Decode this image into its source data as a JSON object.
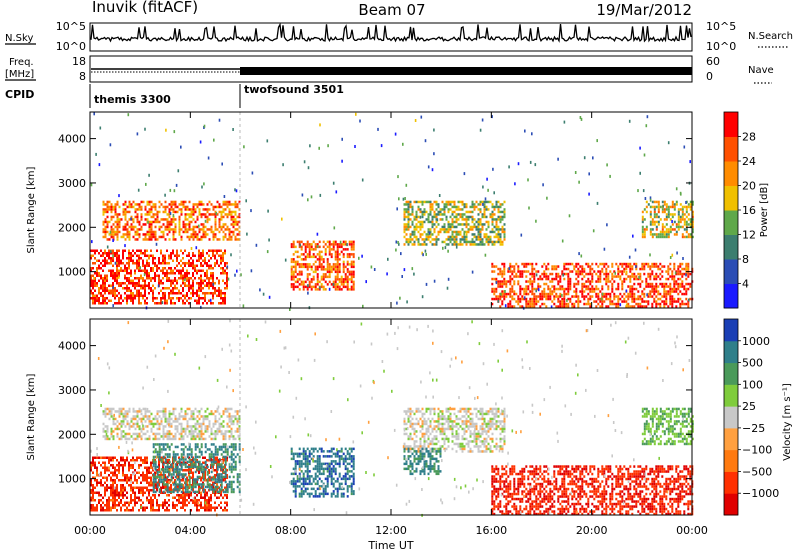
{
  "header": {
    "station": "Inuvik (fitACF)",
    "beam": "Beam 07",
    "date": "19/Mar/2012"
  },
  "sky_panel": {
    "left_label": "N.Sky",
    "right_label": "N.Search",
    "left_ticks": [
      "10^5",
      "10^0"
    ],
    "right_ticks": [
      "10^5",
      "10^0"
    ]
  },
  "freq_panel": {
    "left_label_1": "Freq.",
    "left_label_2": "[MHz]",
    "right_label": "Nave",
    "left_ticks": [
      "18",
      "8"
    ],
    "right_ticks": [
      "60",
      "0"
    ]
  },
  "cpid_panel": {
    "label": "CPID",
    "programs": [
      {
        "name": "themis 3300",
        "start_hour": 0
      },
      {
        "name": "twofsound 3501",
        "start_hour": 6
      }
    ]
  },
  "chart_data": [
    {
      "type": "heatmap",
      "quantity": "Power",
      "ylabel": "Slant Range [km]",
      "yticks": [
        1000,
        2000,
        3000,
        4000
      ],
      "ylim": [
        180,
        4600
      ],
      "xlim": [
        0,
        24
      ],
      "colorbar_label": "Power [dB]",
      "colorbar_ticks": [
        4,
        8,
        12,
        16,
        20,
        24,
        28
      ],
      "colorbar_colors": [
        "#1a1aff",
        "#2b4db5",
        "#3c7e6f",
        "#5fa84a",
        "#f0c000",
        "#ff8c00",
        "#ff5000",
        "#ff0000"
      ],
      "scatter_regions": [
        {
          "t0": 0.0,
          "t1": 5.5,
          "r0": 300,
          "r1": 1500,
          "level": 0.9
        },
        {
          "t0": 0.5,
          "t1": 6.0,
          "r0": 1700,
          "r1": 2600,
          "level": 0.75
        },
        {
          "t0": 8.0,
          "t1": 10.5,
          "r0": 600,
          "r1": 1700,
          "level": 0.8
        },
        {
          "t0": 12.5,
          "t1": 16.5,
          "r0": 1600,
          "r1": 2600,
          "level": 0.5
        },
        {
          "t0": 16.0,
          "t1": 24.0,
          "r0": 200,
          "r1": 1200,
          "level": 0.85
        },
        {
          "t0": 22.0,
          "t1": 24.0,
          "r0": 1800,
          "r1": 2600,
          "level": 0.55
        }
      ]
    },
    {
      "type": "heatmap",
      "quantity": "Velocity",
      "ylabel": "Slant Range [km]",
      "yticks": [
        1000,
        2000,
        3000,
        4000
      ],
      "ylim": [
        180,
        4600
      ],
      "xlim": [
        0,
        24
      ],
      "xlabel": "Time UT",
      "xticks": [
        "00:00",
        "04:00",
        "08:00",
        "12:00",
        "16:00",
        "20:00",
        "00:00"
      ],
      "colorbar_label": "Velocity [m s⁻¹]",
      "colorbar_ticks": [
        "1000",
        "500",
        "100",
        "25",
        "−25",
        "−100",
        "−500",
        "−1000"
      ],
      "colorbar_colors": [
        "#1a3fb5",
        "#2f7f8a",
        "#4a9a5a",
        "#7fcc3c",
        "#c8c8c8",
        "#ffa040",
        "#ff7a10",
        "#ff3000",
        "#e00000"
      ],
      "scatter_regions": [
        {
          "t0": 0.0,
          "t1": 5.5,
          "r0": 300,
          "r1": 1500,
          "level": -0.7
        },
        {
          "t0": 2.5,
          "t1": 6.0,
          "r0": 700,
          "r1": 1800,
          "level": 0.6
        },
        {
          "t0": 0.5,
          "t1": 6.0,
          "r0": 1900,
          "r1": 2600,
          "level": 0.0
        },
        {
          "t0": 8.0,
          "t1": 10.5,
          "r0": 600,
          "r1": 1700,
          "level": 0.7
        },
        {
          "t0": 12.5,
          "t1": 16.5,
          "r0": 1600,
          "r1": 2600,
          "level": 0.0
        },
        {
          "t0": 12.5,
          "t1": 14.0,
          "r0": 1100,
          "r1": 1700,
          "level": 0.6
        },
        {
          "t0": 16.0,
          "t1": 24.0,
          "r0": 200,
          "r1": 1300,
          "level": -0.75
        },
        {
          "t0": 22.0,
          "t1": 24.0,
          "r0": 1800,
          "r1": 2600,
          "level": 0.3
        }
      ]
    }
  ]
}
